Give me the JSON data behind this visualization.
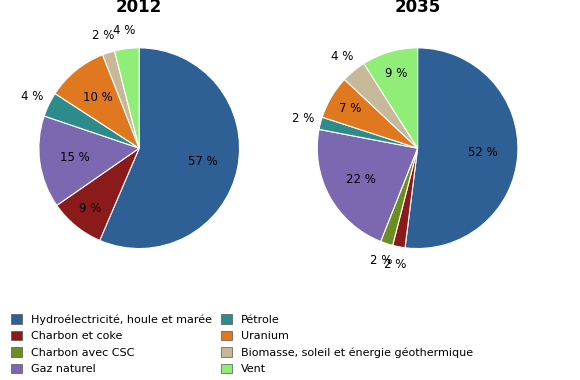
{
  "title_2012": "2012",
  "title_2035": "2035",
  "legend_col1": [
    "Hydroélectricité, houle et marée",
    "Charbon avec CSC",
    "Pétrole",
    "Biomasse, soleil et énergie géothermique"
  ],
  "legend_col2": [
    "Charbon et coke",
    "Gaz naturel",
    "Uranium",
    "Vent"
  ],
  "colors": [
    "#2E6096",
    "#8B1A1A",
    "#6B8E23",
    "#7B68B0",
    "#2E8B8B",
    "#E07820",
    "#C8B89A",
    "#90EE78"
  ],
  "color_map": {
    "Hydroélectricité, houle et marée": "#2E6096",
    "Charbon et coke": "#8B1A1A",
    "Charbon avec CSC": "#6B8E23",
    "Gaz naturel": "#7B68B0",
    "Pétrole": "#2E8B8B",
    "Uranium": "#E07820",
    "Biomasse, soleil et énergie géothermique": "#C8B89A",
    "Vent": "#90EE78"
  },
  "slice_order": [
    "Hydroélectricité, houle et marée",
    "Charbon et coke",
    "Charbon avec CSC",
    "Gaz naturel",
    "Pétrole",
    "Uranium",
    "Biomasse, soleil et énergie géothermique",
    "Vent"
  ],
  "values_2012": [
    57,
    9,
    0,
    15,
    4,
    10,
    2,
    4
  ],
  "values_2035": [
    52,
    2,
    2,
    22,
    2,
    7,
    4,
    9
  ],
  "background_color": "#ffffff",
  "title_fontsize": 12,
  "label_fontsize": 8.5,
  "legend_fontsize": 8
}
